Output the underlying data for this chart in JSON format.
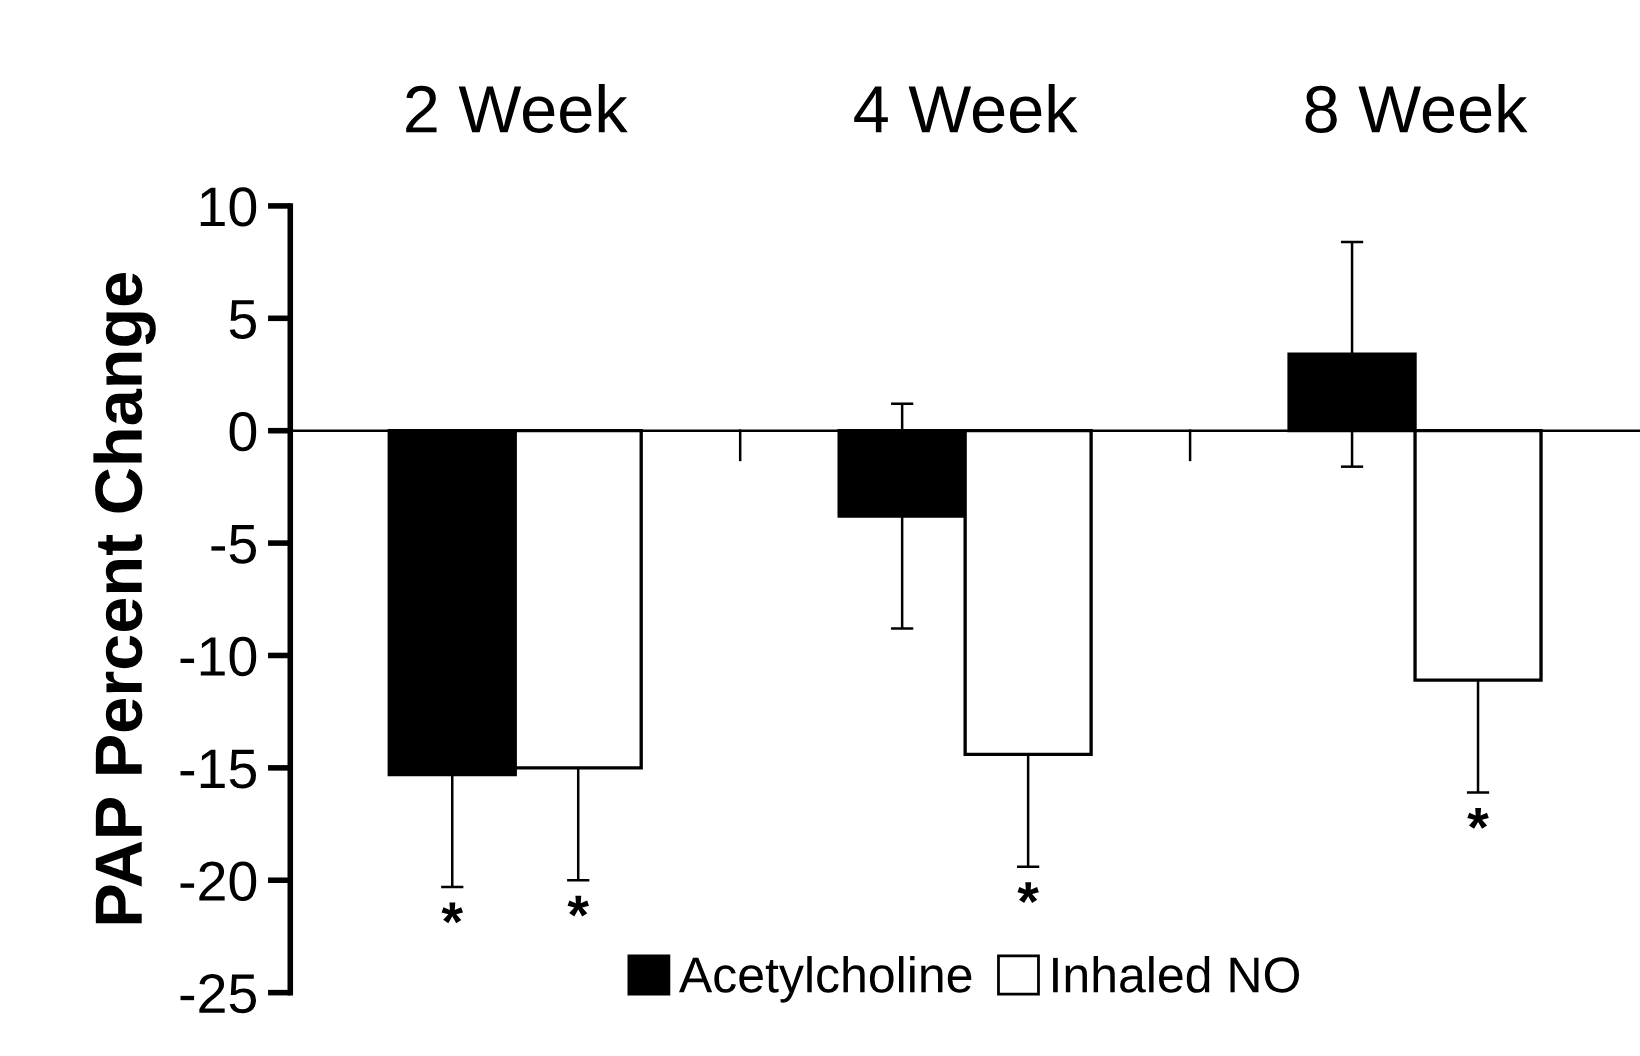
{
  "chart_data": {
    "type": "bar",
    "categories": [
      "2 Week",
      "4 Week",
      "8 Week"
    ],
    "ylabel": "PAP Percent Change",
    "series": [
      {
        "name": "Acetylcholine",
        "color": "#000000",
        "values": [
          -15.3,
          -3.8,
          3.4
        ],
        "errors": [
          5,
          5,
          5
        ],
        "value_labels": [
          "*",
          null,
          null
        ]
      },
      {
        "name": "Inhaled NO",
        "color": "#ffffff",
        "values": [
          -15.0,
          -14.4,
          -11.1
        ],
        "errors": [
          5,
          5,
          5
        ],
        "value_labels": [
          "*",
          "*",
          "*"
        ]
      }
    ],
    "ylim": [
      -25,
      10
    ],
    "yticks": [
      -25,
      -20,
      -15,
      -10,
      -5,
      0,
      5,
      10
    ],
    "ref_lines": [
      {
        "axis": "y",
        "value": 0,
        "color": "#000000"
      }
    ],
    "grid": false,
    "legend": "bottom"
  }
}
